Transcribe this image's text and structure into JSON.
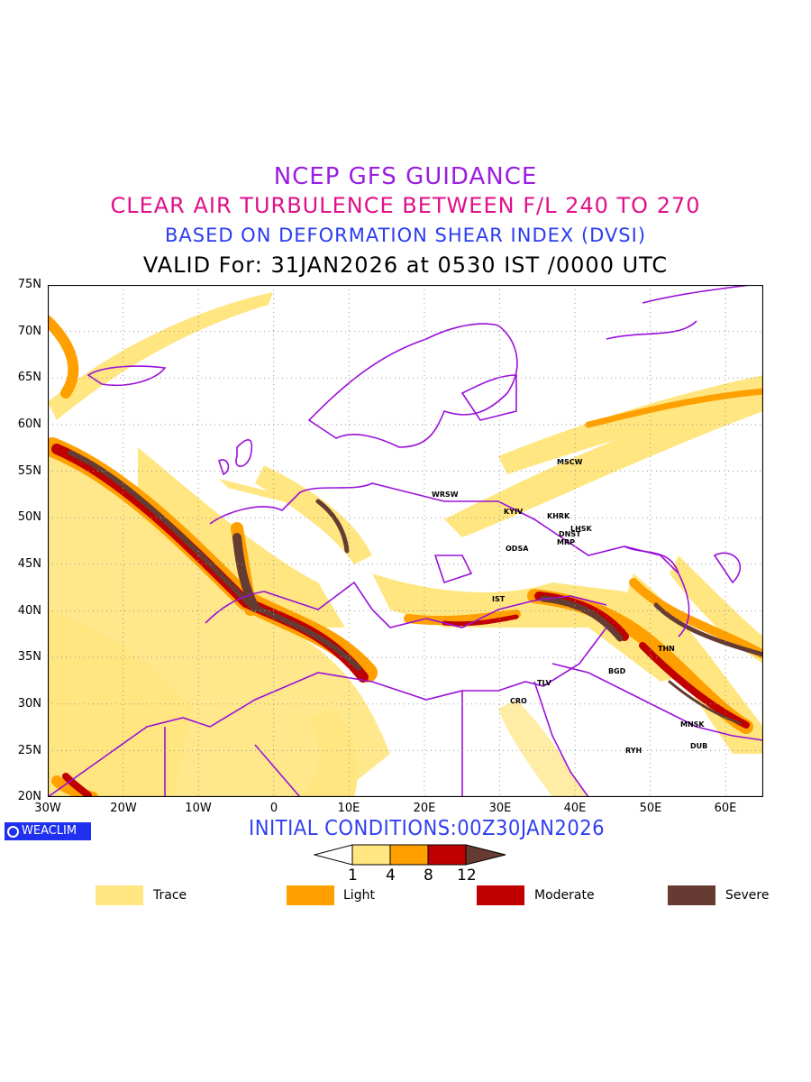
{
  "title": {
    "line1": "NCEP GFS GUIDANCE",
    "line2": "CLEAR AIR TURBULENCE BETWEEN F/L 240 TO 270",
    "line3": "BASED ON DEFORMATION SHEAR INDEX (DVSI)",
    "line4": "VALID For: 31JAN2026 at 0530 IST /0000 UTC"
  },
  "axes": {
    "lat_labels": [
      "75N",
      "70N",
      "65N",
      "60N",
      "55N",
      "50N",
      "45N",
      "40N",
      "35N",
      "30N",
      "25N",
      "20N"
    ],
    "lon_labels": [
      "30W",
      "20W",
      "10W",
      "0",
      "10E",
      "20E",
      "30E",
      "40E",
      "50E",
      "60E"
    ],
    "lon_range": [
      -30,
      65
    ],
    "lat_range": [
      20,
      75
    ]
  },
  "cities": [
    "MSCW",
    "WRSW",
    "KYIV",
    "KHRK",
    "LHSK",
    "DNST",
    "MRP",
    "ODSA",
    "IST",
    "THN",
    "BGD",
    "TLV",
    "CRO",
    "MNSK",
    "DUB",
    "RYH"
  ],
  "logo": "WEACLIM",
  "initial_conditions": "INITIAL CONDITIONS:00Z30JAN2026",
  "colorbar": {
    "ticks": [
      "1",
      "4",
      "8",
      "12"
    ],
    "colors": [
      "#ffe680",
      "#ffa000",
      "#c00000",
      "#663c32"
    ]
  },
  "legend": [
    {
      "label": "Trace",
      "color": "#ffe680"
    },
    {
      "label": "Light",
      "color": "#ffa000"
    },
    {
      "label": "Moderate",
      "color": "#c00000"
    },
    {
      "label": "Severe",
      "color": "#663c32"
    }
  ],
  "colors": {
    "coastline": "#9a10d8",
    "grid": "#999999"
  }
}
